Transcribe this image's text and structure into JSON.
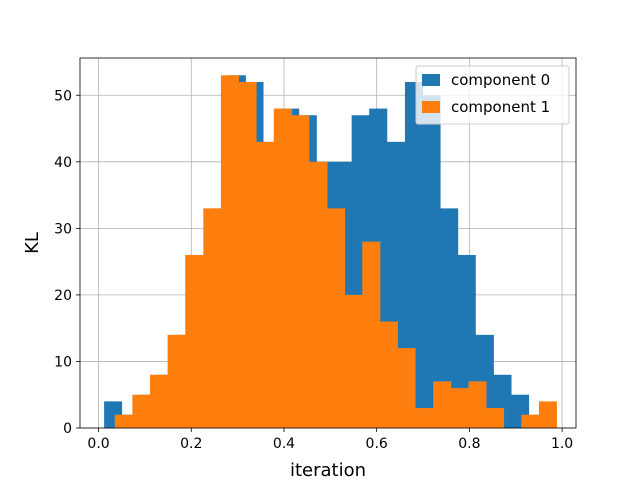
{
  "chart_data": {
    "type": "histogram",
    "xlabel": "iteration",
    "ylabel": "KL",
    "xlim": [
      -0.04,
      1.03
    ],
    "ylim": [
      0,
      55.6
    ],
    "xticks": [
      0.0,
      0.2,
      0.4,
      0.6,
      0.8,
      1.0
    ],
    "xtick_labels": [
      "0.0",
      "0.2",
      "0.4",
      "0.6",
      "0.8",
      "1.0"
    ],
    "yticks": [
      0,
      10,
      20,
      30,
      40,
      50
    ],
    "ytick_labels": [
      "0",
      "10",
      "20",
      "30",
      "40",
      "50"
    ],
    "grid": true,
    "legend_position": "top-right",
    "series": [
      {
        "name": "component 0",
        "color": "#1f77b4",
        "bins": [
          {
            "x0": 0.012,
            "x1": 0.05,
            "count": 4
          },
          {
            "x0": 0.05,
            "x1": 0.088,
            "count": 2
          },
          {
            "x0": 0.088,
            "x1": 0.126,
            "count": 5
          },
          {
            "x0": 0.126,
            "x1": 0.164,
            "count": 8
          },
          {
            "x0": 0.164,
            "x1": 0.203,
            "count": 14
          },
          {
            "x0": 0.203,
            "x1": 0.241,
            "count": 26
          },
          {
            "x0": 0.241,
            "x1": 0.279,
            "count": 33
          },
          {
            "x0": 0.279,
            "x1": 0.317,
            "count": 53
          },
          {
            "x0": 0.317,
            "x1": 0.355,
            "count": 52
          },
          {
            "x0": 0.355,
            "x1": 0.393,
            "count": 43
          },
          {
            "x0": 0.393,
            "x1": 0.432,
            "count": 48
          },
          {
            "x0": 0.432,
            "x1": 0.47,
            "count": 47
          },
          {
            "x0": 0.47,
            "x1": 0.508,
            "count": 40
          },
          {
            "x0": 0.508,
            "x1": 0.546,
            "count": 40
          },
          {
            "x0": 0.546,
            "x1": 0.584,
            "count": 47
          },
          {
            "x0": 0.584,
            "x1": 0.622,
            "count": 48
          },
          {
            "x0": 0.622,
            "x1": 0.661,
            "count": 43
          },
          {
            "x0": 0.661,
            "x1": 0.699,
            "count": 52
          },
          {
            "x0": 0.699,
            "x1": 0.737,
            "count": 50
          },
          {
            "x0": 0.737,
            "x1": 0.775,
            "count": 33
          },
          {
            "x0": 0.775,
            "x1": 0.813,
            "count": 26
          },
          {
            "x0": 0.813,
            "x1": 0.852,
            "count": 14
          },
          {
            "x0": 0.852,
            "x1": 0.89,
            "count": 8
          },
          {
            "x0": 0.89,
            "x1": 0.928,
            "count": 5
          }
        ]
      },
      {
        "name": "component 1",
        "color": "#ff7f0e",
        "bins": [
          {
            "x0": 0.035,
            "x1": 0.073,
            "count": 2
          },
          {
            "x0": 0.073,
            "x1": 0.111,
            "count": 5
          },
          {
            "x0": 0.111,
            "x1": 0.149,
            "count": 8
          },
          {
            "x0": 0.149,
            "x1": 0.187,
            "count": 14
          },
          {
            "x0": 0.187,
            "x1": 0.226,
            "count": 26
          },
          {
            "x0": 0.226,
            "x1": 0.264,
            "count": 33
          },
          {
            "x0": 0.264,
            "x1": 0.302,
            "count": 53
          },
          {
            "x0": 0.302,
            "x1": 0.34,
            "count": 52
          },
          {
            "x0": 0.34,
            "x1": 0.378,
            "count": 43
          },
          {
            "x0": 0.378,
            "x1": 0.416,
            "count": 48
          },
          {
            "x0": 0.416,
            "x1": 0.454,
            "count": 47
          },
          {
            "x0": 0.454,
            "x1": 0.493,
            "count": 40
          },
          {
            "x0": 0.493,
            "x1": 0.531,
            "count": 33
          },
          {
            "x0": 0.531,
            "x1": 0.569,
            "count": 20
          },
          {
            "x0": 0.569,
            "x1": 0.607,
            "count": 28
          },
          {
            "x0": 0.607,
            "x1": 0.645,
            "count": 16
          },
          {
            "x0": 0.645,
            "x1": 0.683,
            "count": 12
          },
          {
            "x0": 0.683,
            "x1": 0.722,
            "count": 3
          },
          {
            "x0": 0.722,
            "x1": 0.76,
            "count": 7
          },
          {
            "x0": 0.76,
            "x1": 0.798,
            "count": 6
          },
          {
            "x0": 0.798,
            "x1": 0.836,
            "count": 7
          },
          {
            "x0": 0.836,
            "x1": 0.874,
            "count": 3
          },
          {
            "x0": 0.874,
            "x1": 0.912,
            "count": 0
          },
          {
            "x0": 0.912,
            "x1": 0.95,
            "count": 2
          },
          {
            "x0": 0.95,
            "x1": 0.988,
            "count": 4
          }
        ]
      }
    ]
  }
}
